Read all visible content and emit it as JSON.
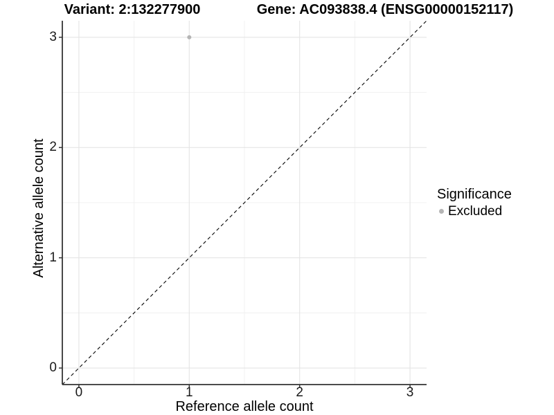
{
  "titles": {
    "variant": "Variant: 2:132277900",
    "gene": "Gene: AC093838.4 (ENSG00000152117)"
  },
  "axes": {
    "x": {
      "title": "Reference allele count"
    },
    "y": {
      "title": "Alternative allele count"
    }
  },
  "legend": {
    "title": "Significance",
    "position": "right",
    "items": [
      {
        "label": "Excluded",
        "color": "#b5b5b5",
        "marker": "circle"
      }
    ]
  },
  "colors": {
    "background": "#ffffff",
    "grid_major": "#e4e4e4",
    "grid_minor": "#f0f0f0",
    "axis_line": "#333333",
    "tick": "#333333",
    "tick_label": "#1a1a1a",
    "point": "#b5b5b5",
    "reference_line": "#000000"
  },
  "chart_data": {
    "type": "scatter",
    "title": "Variant: 2:132277900   Gene: AC093838.4 (ENSG00000152117)",
    "xlabel": "Reference allele count",
    "ylabel": "Alternative allele count",
    "xlim": [
      -0.15,
      3.15
    ],
    "ylim": [
      -0.15,
      3.15
    ],
    "x_ticks": [
      0,
      1,
      2,
      3
    ],
    "y_ticks": [
      0,
      1,
      2,
      3
    ],
    "x_minor_ticks": [
      0.5,
      1.5,
      2.5
    ],
    "y_minor_ticks": [
      0.5,
      1.5,
      2.5
    ],
    "grid": true,
    "legend_position": "right",
    "series": [
      {
        "name": "Excluded",
        "color": "#b5b5b5",
        "points": [
          {
            "x": 1,
            "y": 3
          }
        ]
      }
    ],
    "reference_line": {
      "slope": 1,
      "intercept": 0,
      "style": "dashed",
      "color": "#000000"
    }
  }
}
